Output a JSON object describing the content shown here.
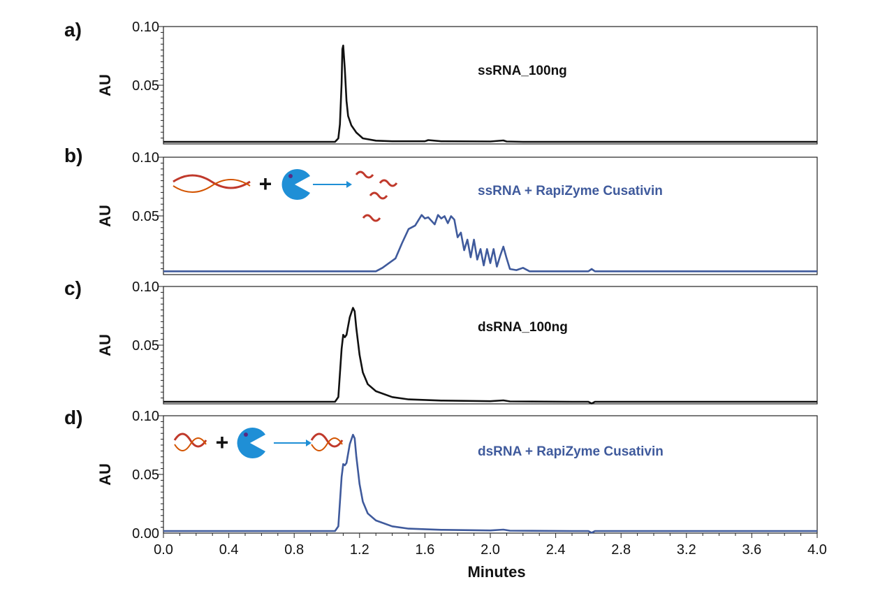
{
  "chart_data": {
    "type": "line",
    "x_label": "Minutes",
    "x_range": [
      0.0,
      4.0
    ],
    "x_ticks": [
      "0.0",
      "0.4",
      "0.8",
      "1.2",
      "1.6",
      "2.0",
      "2.4",
      "2.8",
      "3.2",
      "3.6",
      "4.0"
    ],
    "y_label": "AU",
    "panels": [
      {
        "letter": "a)",
        "annotation": "ssRNA_100ng",
        "color": "#111111",
        "y_range": [
          0,
          0.1
        ],
        "y_ticks": [
          "0.10",
          "0.05"
        ],
        "x": [
          0.0,
          1.0,
          1.05,
          1.07,
          1.08,
          1.09,
          1.095,
          1.1,
          1.11,
          1.12,
          1.13,
          1.15,
          1.18,
          1.22,
          1.3,
          1.4,
          1.6,
          1.62,
          1.7,
          2.0,
          2.08,
          2.1,
          2.2,
          2.6,
          3.0,
          4.0
        ],
        "y": [
          0.0,
          0.0,
          0.0,
          0.003,
          0.015,
          0.05,
          0.079,
          0.082,
          0.062,
          0.035,
          0.022,
          0.014,
          0.008,
          0.003,
          0.001,
          0.0005,
          0.0005,
          0.0015,
          0.0005,
          0.0003,
          0.0012,
          0.0003,
          0.0,
          0.0,
          0.0,
          0.0
        ]
      },
      {
        "letter": "b)",
        "annotation": "ssRNA + RapiZyme Cusativin",
        "color": "#3f5a9c",
        "y_range": [
          0,
          0.1
        ],
        "y_ticks": [
          "0.10",
          "0.05"
        ],
        "x": [
          0.0,
          1.0,
          1.3,
          1.34,
          1.38,
          1.42,
          1.46,
          1.5,
          1.54,
          1.58,
          1.6,
          1.62,
          1.66,
          1.68,
          1.7,
          1.72,
          1.74,
          1.76,
          1.78,
          1.8,
          1.82,
          1.84,
          1.86,
          1.88,
          1.9,
          1.92,
          1.94,
          1.96,
          1.98,
          2.0,
          2.02,
          2.04,
          2.06,
          2.08,
          2.1,
          2.12,
          2.16,
          2.2,
          2.24,
          2.3,
          2.6,
          2.62,
          2.64,
          3.0,
          3.5,
          4.0
        ],
        "y": [
          0.001,
          0.001,
          0.001,
          0.004,
          0.008,
          0.012,
          0.025,
          0.037,
          0.04,
          0.049,
          0.046,
          0.047,
          0.041,
          0.049,
          0.046,
          0.048,
          0.042,
          0.048,
          0.045,
          0.03,
          0.034,
          0.019,
          0.028,
          0.013,
          0.028,
          0.011,
          0.02,
          0.006,
          0.02,
          0.008,
          0.02,
          0.005,
          0.014,
          0.022,
          0.012,
          0.003,
          0.002,
          0.004,
          0.001,
          0.001,
          0.001,
          0.003,
          0.001,
          0.001,
          0.001,
          0.001
        ]
      },
      {
        "letter": "c)",
        "annotation": "dsRNA_100ng",
        "color": "#111111",
        "y_range": [
          0,
          0.1
        ],
        "y_ticks": [
          "0.10",
          "0.05"
        ],
        "x": [
          0.0,
          1.0,
          1.05,
          1.07,
          1.09,
          1.1,
          1.11,
          1.12,
          1.14,
          1.16,
          1.17,
          1.18,
          1.2,
          1.22,
          1.25,
          1.3,
          1.4,
          1.5,
          1.7,
          2.0,
          2.08,
          2.12,
          2.5,
          2.6,
          2.62,
          2.64,
          3.0,
          3.5,
          4.0
        ],
        "y": [
          0.0,
          0.0,
          0.0,
          0.004,
          0.045,
          0.057,
          0.055,
          0.057,
          0.072,
          0.08,
          0.077,
          0.063,
          0.04,
          0.025,
          0.015,
          0.009,
          0.004,
          0.002,
          0.001,
          0.0005,
          0.0012,
          0.0003,
          0.0,
          0.0,
          -0.0015,
          0.0,
          0.0,
          0.0,
          0.0
        ]
      },
      {
        "letter": "d)",
        "annotation": "dsRNA + RapiZyme  Cusativin",
        "color": "#3f5a9c",
        "y_range": [
          0,
          0.1
        ],
        "y_ticks": [
          "0.10",
          "0.05",
          "0.00"
        ],
        "x": [
          0.0,
          1.0,
          1.05,
          1.07,
          1.09,
          1.1,
          1.11,
          1.12,
          1.14,
          1.16,
          1.17,
          1.18,
          1.2,
          1.22,
          1.25,
          1.3,
          1.4,
          1.5,
          1.7,
          2.0,
          2.08,
          2.12,
          2.5,
          2.6,
          2.62,
          2.64,
          3.0,
          3.5,
          4.0
        ],
        "y": [
          0.0,
          0.0,
          0.0,
          0.004,
          0.046,
          0.057,
          0.056,
          0.058,
          0.074,
          0.082,
          0.079,
          0.064,
          0.04,
          0.025,
          0.015,
          0.009,
          0.004,
          0.002,
          0.001,
          0.0005,
          0.0012,
          0.0003,
          0.0,
          0.0,
          -0.0015,
          0.0,
          0.0,
          0.0,
          0.0
        ]
      }
    ]
  }
}
